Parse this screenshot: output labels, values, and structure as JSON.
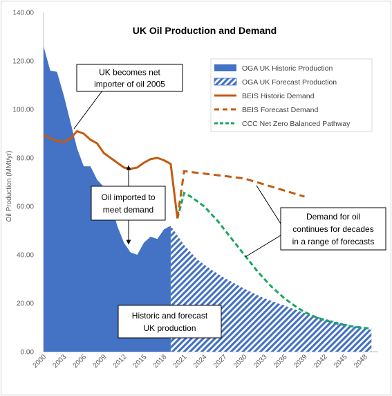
{
  "chart_data": {
    "type": "area",
    "title": "UK Oil Production and Demand",
    "xlabel": "",
    "ylabel": "Oil Production (MMt/yr)",
    "ylim": [
      0,
      140
    ],
    "yticks": [
      "0.00",
      "20.00",
      "40.00",
      "60.00",
      "80.00",
      "100.00",
      "120.00",
      "140.00"
    ],
    "xlim": [
      2000,
      2050
    ],
    "xticks": [
      "2000",
      "2003",
      "2006",
      "2009",
      "2012",
      "2015",
      "2018",
      "2021",
      "2024",
      "2027",
      "2030",
      "2033",
      "2036",
      "2039",
      "2042",
      "2045",
      "2048"
    ],
    "grid": false,
    "legend_position": "top-right",
    "series": [
      {
        "name": "OGA UK Historic Production",
        "style": "filled-area",
        "color": "#4472c4",
        "x": [
          2000,
          2001,
          2002,
          2003,
          2004,
          2005,
          2006,
          2007,
          2008,
          2009,
          2010,
          2011,
          2012,
          2013,
          2014,
          2015,
          2016,
          2017,
          2018,
          2019
        ],
        "values": [
          126,
          116,
          115.5,
          106,
          95,
          84,
          76.5,
          76.5,
          71,
          68,
          62,
          52,
          45,
          41,
          40,
          45,
          47.5,
          46.5,
          50.5,
          52
        ]
      },
      {
        "name": "OGA UK Forecast Production",
        "style": "hatched-area",
        "color": "#4472c4",
        "x": [
          2019,
          2020,
          2021,
          2022,
          2023,
          2025,
          2027,
          2030,
          2033,
          2036,
          2040,
          2045,
          2049
        ],
        "values": [
          52,
          48,
          44,
          41,
          38,
          34,
          30.5,
          26,
          22,
          19,
          15,
          11.5,
          9
        ]
      },
      {
        "name": "BEIS Historic Demand",
        "style": "solid-line",
        "color": "#c55a11",
        "x": [
          2000,
          2001,
          2002,
          2003,
          2004,
          2005,
          2006,
          2007,
          2008,
          2009,
          2010,
          2011,
          2012,
          2013,
          2014,
          2015,
          2016,
          2017,
          2018,
          2019,
          2020
        ],
        "values": [
          89.5,
          88,
          87,
          86.5,
          88,
          91,
          90,
          87.5,
          86,
          82,
          80,
          78,
          76,
          75.5,
          76,
          78,
          79.5,
          80,
          79,
          77.5,
          55
        ]
      },
      {
        "name": "BEIS Forecast Demand",
        "style": "dashed-line",
        "color": "#c55a11",
        "x": [
          2020,
          2021,
          2024,
          2027,
          2030,
          2033,
          2036,
          2039
        ],
        "values": [
          55,
          74.5,
          73.5,
          72.5,
          71.5,
          69,
          66.5,
          64
        ]
      },
      {
        "name": "CCC Net Zero Balanced Pathway",
        "style": "dashed-line",
        "color": "#19a75e",
        "x": [
          2020,
          2021,
          2022,
          2024,
          2026,
          2028,
          2030,
          2032,
          2034,
          2036,
          2038,
          2040,
          2042,
          2044,
          2046,
          2049
        ],
        "values": [
          55,
          65.5,
          64,
          60,
          54,
          47,
          40,
          33,
          27,
          22,
          18,
          15,
          13,
          11.5,
          10.5,
          9.5
        ]
      }
    ],
    "annotations": [
      {
        "lines": [
          "UK becomes net",
          "importer of oil 2005"
        ]
      },
      {
        "lines": [
          "Oil imported to",
          "meet demand"
        ]
      },
      {
        "lines": [
          "Demand for oil",
          "continues for decades",
          "in a range of forecasts"
        ]
      },
      {
        "lines": [
          "Historic and forecast",
          "UK production"
        ]
      }
    ]
  }
}
